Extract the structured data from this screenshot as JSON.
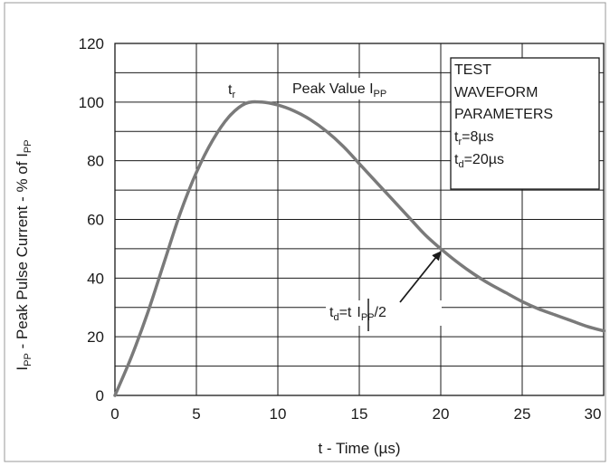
{
  "chart_data": {
    "type": "line",
    "title": "",
    "xlabel": "t - Time (µs)",
    "ylabel": "IPP - Peak Pulse Current - % of IPP",
    "xlim": [
      0,
      30
    ],
    "ylim": [
      0,
      120
    ],
    "x_ticks": [
      "0",
      "5",
      "10",
      "15",
      "20",
      "25",
      "30"
    ],
    "y_ticks": [
      "0",
      "20",
      "40",
      "60",
      "80",
      "100",
      "120"
    ],
    "grid": true,
    "series": [
      {
        "x": [
          0,
          1,
          2,
          3,
          4,
          5,
          6,
          7,
          8,
          9,
          10,
          11,
          12,
          13,
          14,
          15,
          16,
          17,
          18,
          19,
          20,
          21,
          22,
          23,
          24,
          25,
          26,
          27,
          28,
          29,
          30
        ],
        "y": [
          0,
          13,
          28,
          45,
          62,
          76,
          87,
          95,
          99.5,
          100,
          99,
          97,
          94,
          90,
          85,
          79,
          73,
          67,
          61,
          55,
          50,
          45.5,
          41.5,
          38,
          35,
          32,
          29.5,
          27.5,
          25.5,
          23.5,
          22
        ]
      }
    ],
    "annotations": {
      "tr": {
        "main": "t",
        "sub": "r"
      },
      "peak": {
        "main": "Peak Value I",
        "sub": "PP"
      },
      "td": {
        "t1": "t",
        "s1": "d",
        "t2": "=t",
        "t3": "I",
        "s3": "PP",
        "t4": "/2"
      },
      "params": {
        "line1": "TEST",
        "line2": "WAVEFORM",
        "line3": "PARAMETERS",
        "tr_main": "t",
        "tr_sub": "r",
        "tr_val": "=8µs",
        "td_main": "t",
        "td_sub": "d",
        "td_val": "=20µs"
      }
    },
    "ylabel_parts": {
      "a": "I",
      "b": "PP",
      "c": " - Peak Pulse Current - % of I",
      "d": "PP"
    },
    "colors": {
      "curve": "#7a7a7a",
      "grid": "#1a1a1a",
      "frame": "#1a1a1a"
    }
  }
}
